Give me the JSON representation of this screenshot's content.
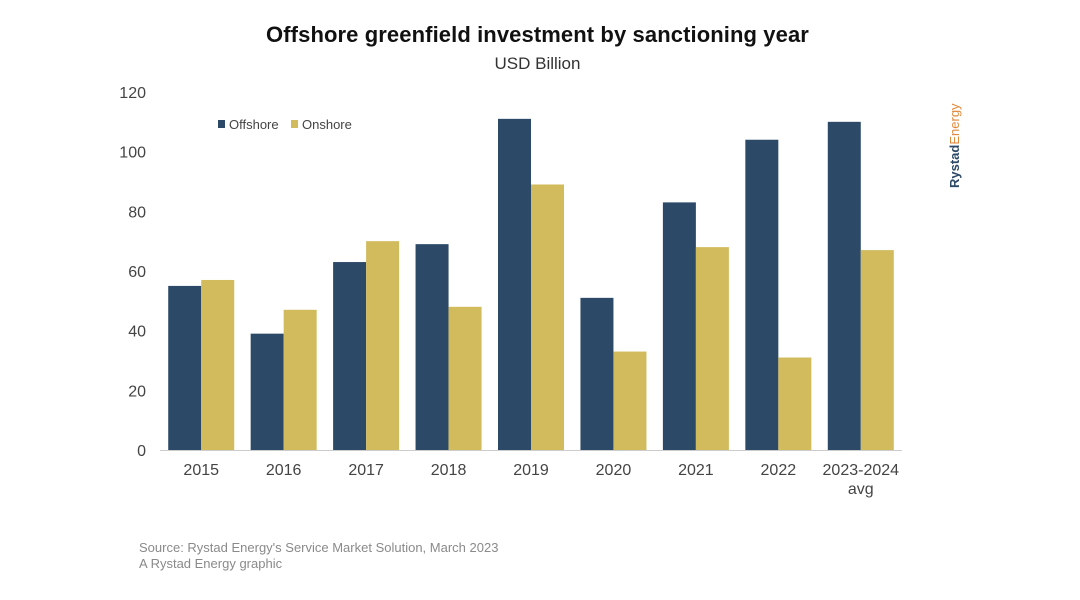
{
  "header": {
    "title": "Offshore greenfield investment by sanctioning year",
    "subtitle": "USD Billion"
  },
  "footer": {
    "source": "Source: Rystad Energy's Service Market Solution, March 2023",
    "credit": "A Rystad Energy graphic"
  },
  "brand": {
    "part1": "Rystad",
    "part2": "Energy",
    "color1": "#2c4a68",
    "color2": "#e08a3a"
  },
  "chart_data": {
    "type": "bar",
    "title": "Offshore greenfield investment by sanctioning year",
    "subtitle": "USD Billion",
    "xlabel": "",
    "ylabel": "",
    "ylim": [
      0,
      120
    ],
    "yticks": [
      0,
      20,
      40,
      60,
      80,
      100,
      120
    ],
    "grid": false,
    "legend_position": "top-left",
    "categories": [
      "2015",
      "2016",
      "2017",
      "2018",
      "2019",
      "2020",
      "2021",
      "2022",
      "2023-2024 avg"
    ],
    "series": [
      {
        "name": "Offshore",
        "color": "#2c4a68",
        "values": [
          55,
          39,
          63,
          69,
          111,
          51,
          83,
          104,
          110
        ]
      },
      {
        "name": "Onshore",
        "color": "#d1bb5c",
        "values": [
          57,
          47,
          70,
          48,
          89,
          33,
          68,
          31,
          67
        ]
      }
    ]
  }
}
